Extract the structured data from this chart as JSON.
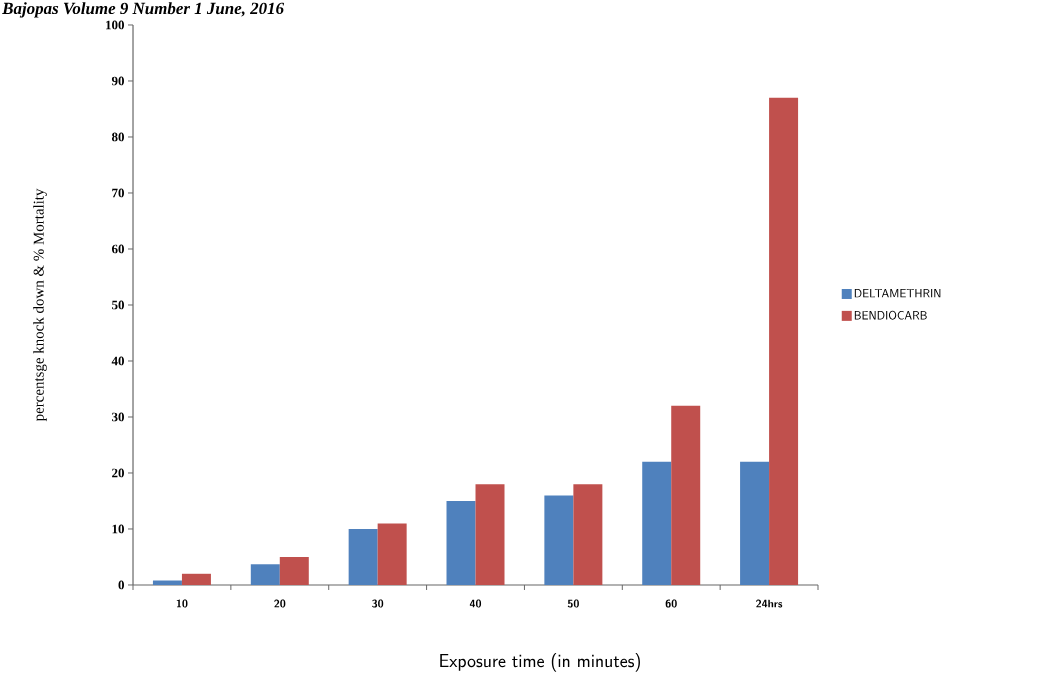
{
  "chart_data": {
    "type": "bar",
    "annotations": [
      "Bajopas Volume 9 Number 1 June, 2016"
    ],
    "xlabel": "Exposure time (in minutes)",
    "ylabel": "percentsge knock down & % Mortality",
    "categories": [
      "10",
      "20",
      "30",
      "40",
      "50",
      "60",
      "24hrs"
    ],
    "series": [
      {
        "name": "DELTAMETHRIN",
        "color": "#4f81bd",
        "values": [
          0.8,
          3.7,
          10,
          15,
          16,
          22,
          22
        ]
      },
      {
        "name": "BENDIOCARB",
        "color": "#c0504d",
        "values": [
          2,
          5,
          11,
          18,
          18,
          32,
          87
        ]
      }
    ],
    "ylim": [
      0,
      100
    ],
    "yticks": [
      0,
      10,
      20,
      30,
      40,
      50,
      60,
      70,
      80,
      90,
      100
    ],
    "grid": false,
    "legend": "right"
  }
}
